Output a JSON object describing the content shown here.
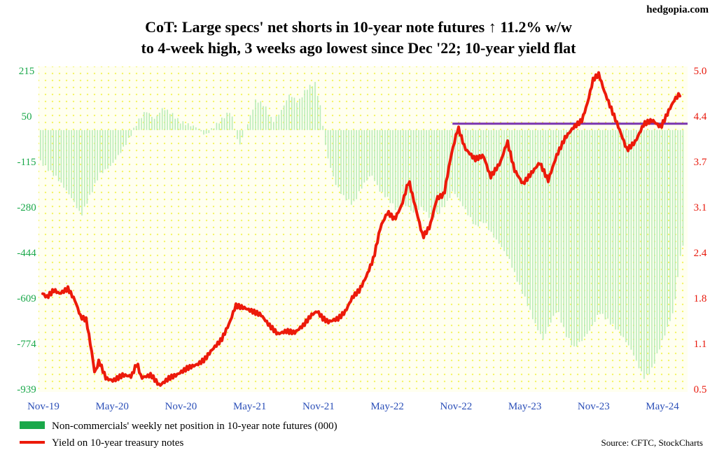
{
  "site": "hedgopia.com",
  "source": "Source: CFTC, StockCharts",
  "colors": {
    "bars": "#b9ecb9",
    "yield_line": "#ec1a0a",
    "resistance_line": "#7a35b0",
    "left_axis": "#1aa84a",
    "right_axis": "#e8190c",
    "x_axis": "#2b4fb8",
    "plot_background": "#fffff0",
    "dots": "#f5f56a"
  },
  "chart_data": {
    "type": "bar+line",
    "title": "CoT: Large specs' net shorts in 10-year note futures ↑ 11.2% w/w",
    "subtitle": "to 4-week high, 3 weeks ago lowest since Dec '22; 10-year yield flat",
    "x_tick_labels": [
      "Nov-19",
      "May-20",
      "Nov-20",
      "May-21",
      "Nov-21",
      "May-22",
      "Nov-22",
      "May-23",
      "Nov-23",
      "May-24"
    ],
    "left_axis": {
      "ticks": [
        "215",
        "50",
        "-115",
        "-280",
        "-444",
        "-609",
        "-774",
        "-939"
      ],
      "range": [
        -939,
        215
      ]
    },
    "right_axis": {
      "ticks": [
        "5.0",
        "4.4",
        "3.7",
        "3.1",
        "2.4",
        "1.8",
        "1.1",
        "0.5"
      ],
      "range": [
        0.5,
        5.0
      ]
    },
    "grid": false,
    "legend_position": "bottom-left",
    "resistance_level": 4.25,
    "resistance_span": [
      "Oct-22",
      "May-24"
    ],
    "series": [
      {
        "name": "Non-commercials' weekly net position in 10-year note futures (000)",
        "kind": "bar",
        "axis": "left",
        "anchors": [
          [
            2019.83,
            -115
          ],
          [
            2019.95,
            -175
          ],
          [
            2020.05,
            -245
          ],
          [
            2020.12,
            -310
          ],
          [
            2020.18,
            -240
          ],
          [
            2020.25,
            -160
          ],
          [
            2020.33,
            -130
          ],
          [
            2020.4,
            -80
          ],
          [
            2020.46,
            -30
          ],
          [
            2020.52,
            30
          ],
          [
            2020.58,
            70
          ],
          [
            2020.64,
            40
          ],
          [
            2020.7,
            80
          ],
          [
            2020.76,
            60
          ],
          [
            2020.82,
            30
          ],
          [
            2020.88,
            20
          ],
          [
            2020.94,
            10
          ],
          [
            2021.0,
            -20
          ],
          [
            2021.06,
            10
          ],
          [
            2021.12,
            40
          ],
          [
            2021.18,
            70
          ],
          [
            2021.24,
            -60
          ],
          [
            2021.3,
            20
          ],
          [
            2021.36,
            110
          ],
          [
            2021.42,
            90
          ],
          [
            2021.48,
            30
          ],
          [
            2021.54,
            70
          ],
          [
            2021.6,
            130
          ],
          [
            2021.66,
            100
          ],
          [
            2021.72,
            150
          ],
          [
            2021.78,
            170
          ],
          [
            2021.82,
            80
          ],
          [
            2021.86,
            -80
          ],
          [
            2021.92,
            -190
          ],
          [
            2021.98,
            -240
          ],
          [
            2022.05,
            -270
          ],
          [
            2022.12,
            -200
          ],
          [
            2022.18,
            -160
          ],
          [
            2022.24,
            -220
          ],
          [
            2022.3,
            -250
          ],
          [
            2022.36,
            -290
          ],
          [
            2022.42,
            -270
          ],
          [
            2022.48,
            -300
          ],
          [
            2022.54,
            -280
          ],
          [
            2022.6,
            -320
          ],
          [
            2022.66,
            -300
          ],
          [
            2022.72,
            -260
          ],
          [
            2022.76,
            -220
          ],
          [
            2022.8,
            -250
          ],
          [
            2022.86,
            -300
          ],
          [
            2022.92,
            -350
          ],
          [
            2022.98,
            -330
          ],
          [
            2023.04,
            -380
          ],
          [
            2023.1,
            -420
          ],
          [
            2023.16,
            -470
          ],
          [
            2023.22,
            -550
          ],
          [
            2023.28,
            -620
          ],
          [
            2023.34,
            -700
          ],
          [
            2023.4,
            -760
          ],
          [
            2023.44,
            -710
          ],
          [
            2023.5,
            -650
          ],
          [
            2023.56,
            -740
          ],
          [
            2023.62,
            -790
          ],
          [
            2023.68,
            -760
          ],
          [
            2023.74,
            -720
          ],
          [
            2023.8,
            -660
          ],
          [
            2023.86,
            -690
          ],
          [
            2023.92,
            -720
          ],
          [
            2023.98,
            -760
          ],
          [
            2024.03,
            -800
          ],
          [
            2024.08,
            -860
          ],
          [
            2024.12,
            -900
          ],
          [
            2024.17,
            -870
          ],
          [
            2024.22,
            -800
          ],
          [
            2024.28,
            -720
          ],
          [
            2024.33,
            -650
          ],
          [
            2024.37,
            -470
          ],
          [
            2024.4,
            -400
          ]
        ]
      },
      {
        "name": "Yield on 10-year treasury notes",
        "kind": "line",
        "axis": "right",
        "anchors": [
          [
            2019.85,
            1.85
          ],
          [
            2019.88,
            1.8
          ],
          [
            2019.93,
            1.9
          ],
          [
            2019.97,
            1.85
          ],
          [
            2020.03,
            1.92
          ],
          [
            2020.08,
            1.75
          ],
          [
            2020.12,
            1.52
          ],
          [
            2020.16,
            1.48
          ],
          [
            2020.2,
            1.0
          ],
          [
            2020.22,
            0.72
          ],
          [
            2020.25,
            0.9
          ],
          [
            2020.3,
            0.65
          ],
          [
            2020.35,
            0.62
          ],
          [
            2020.42,
            0.7
          ],
          [
            2020.48,
            0.68
          ],
          [
            2020.52,
            0.87
          ],
          [
            2020.55,
            0.66
          ],
          [
            2020.62,
            0.7
          ],
          [
            2020.68,
            0.55
          ],
          [
            2020.75,
            0.66
          ],
          [
            2020.8,
            0.7
          ],
          [
            2020.88,
            0.8
          ],
          [
            2020.95,
            0.85
          ],
          [
            2021.0,
            0.92
          ],
          [
            2021.05,
            1.05
          ],
          [
            2021.12,
            1.2
          ],
          [
            2021.18,
            1.45
          ],
          [
            2021.22,
            1.68
          ],
          [
            2021.28,
            1.65
          ],
          [
            2021.34,
            1.6
          ],
          [
            2021.4,
            1.55
          ],
          [
            2021.46,
            1.4
          ],
          [
            2021.52,
            1.28
          ],
          [
            2021.58,
            1.32
          ],
          [
            2021.64,
            1.3
          ],
          [
            2021.7,
            1.4
          ],
          [
            2021.76,
            1.55
          ],
          [
            2021.8,
            1.6
          ],
          [
            2021.84,
            1.5
          ],
          [
            2021.88,
            1.45
          ],
          [
            2021.95,
            1.5
          ],
          [
            2022.0,
            1.6
          ],
          [
            2022.05,
            1.8
          ],
          [
            2022.1,
            1.9
          ],
          [
            2022.15,
            2.1
          ],
          [
            2022.2,
            2.35
          ],
          [
            2022.25,
            2.8
          ],
          [
            2022.3,
            3.0
          ],
          [
            2022.35,
            2.9
          ],
          [
            2022.4,
            3.1
          ],
          [
            2022.45,
            3.45
          ],
          [
            2022.5,
            3.05
          ],
          [
            2022.55,
            2.65
          ],
          [
            2022.6,
            2.8
          ],
          [
            2022.65,
            3.2
          ],
          [
            2022.7,
            3.25
          ],
          [
            2022.75,
            3.8
          ],
          [
            2022.8,
            4.2
          ],
          [
            2022.85,
            3.9
          ],
          [
            2022.92,
            3.75
          ],
          [
            2022.98,
            3.8
          ],
          [
            2023.03,
            3.5
          ],
          [
            2023.1,
            3.7
          ],
          [
            2023.15,
            4.0
          ],
          [
            2023.2,
            3.6
          ],
          [
            2023.26,
            3.4
          ],
          [
            2023.32,
            3.55
          ],
          [
            2023.38,
            3.7
          ],
          [
            2023.44,
            3.45
          ],
          [
            2023.5,
            3.8
          ],
          [
            2023.56,
            4.05
          ],
          [
            2023.62,
            4.2
          ],
          [
            2023.68,
            4.3
          ],
          [
            2023.72,
            4.55
          ],
          [
            2023.76,
            4.88
          ],
          [
            2023.8,
            4.95
          ],
          [
            2023.84,
            4.7
          ],
          [
            2023.88,
            4.5
          ],
          [
            2023.94,
            4.2
          ],
          [
            2024.0,
            3.88
          ],
          [
            2024.06,
            4.0
          ],
          [
            2024.12,
            4.25
          ],
          [
            2024.18,
            4.3
          ],
          [
            2024.24,
            4.2
          ],
          [
            2024.3,
            4.45
          ],
          [
            2024.34,
            4.6
          ],
          [
            2024.38,
            4.68
          ],
          [
            2024.42,
            4.5
          ]
        ]
      }
    ]
  },
  "legend": [
    {
      "label": "Non-commercials' weekly net position in 10-year note futures (000)",
      "swatch": "bar"
    },
    {
      "label": "Yield on 10-year treasury notes",
      "swatch": "line"
    }
  ]
}
